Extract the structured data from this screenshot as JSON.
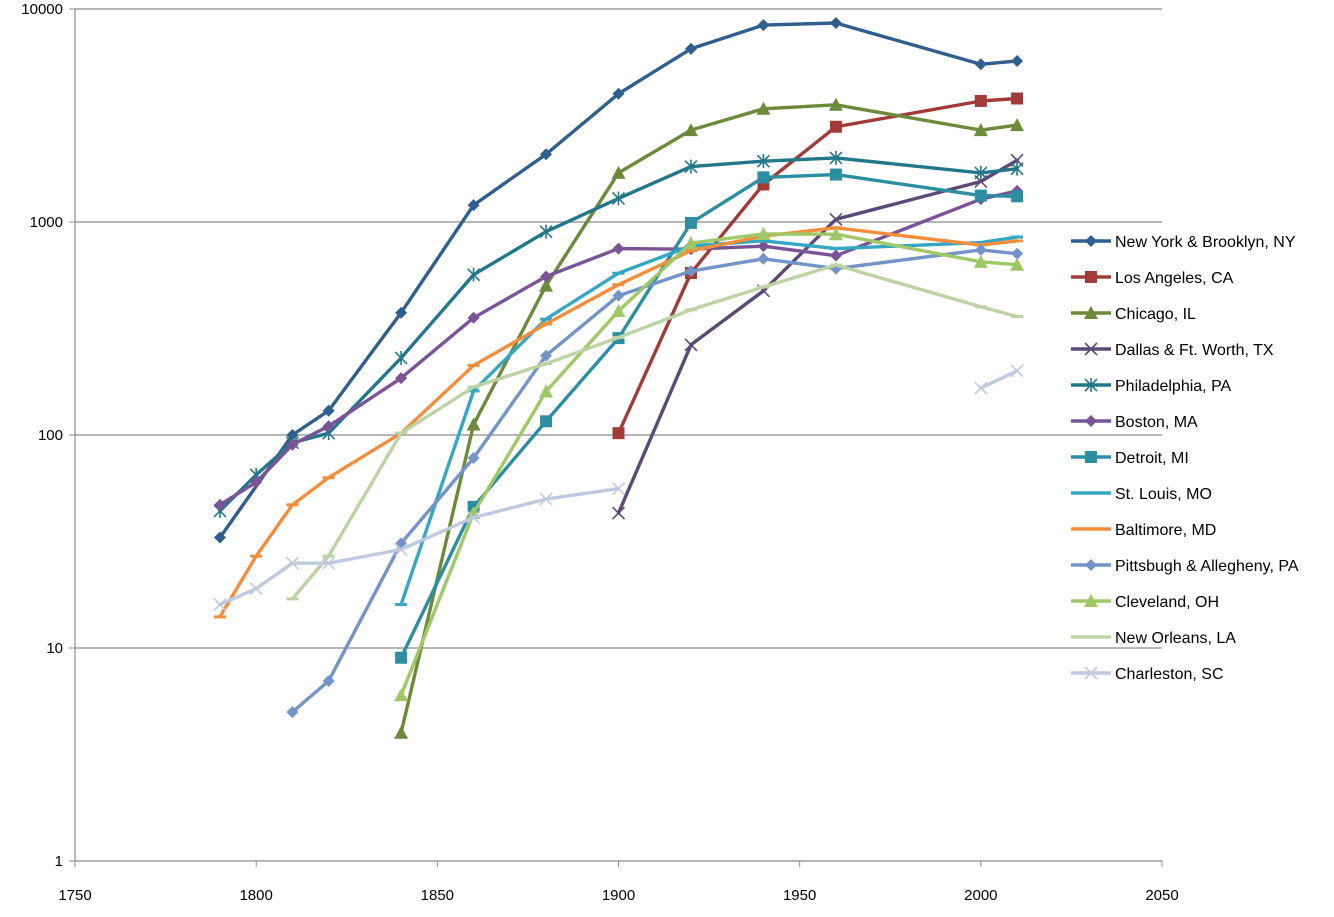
{
  "chart_data": {
    "type": "line",
    "title": "",
    "xlabel": "",
    "ylabel": "",
    "x_scale": "linear",
    "y_scale": "log10",
    "xlim": [
      1750,
      2050
    ],
    "ylim": [
      1,
      10000
    ],
    "x_ticks": [
      1750,
      1800,
      1850,
      1900,
      1950,
      2000,
      2050
    ],
    "x_tick_labels": [
      "1750",
      "1800",
      "1850",
      "1900",
      "1950",
      "2000",
      "2050"
    ],
    "y_ticks": [
      1,
      10,
      100,
      1000,
      10000
    ],
    "y_tick_labels": [
      "1",
      "10",
      "100",
      "1000",
      "10000"
    ],
    "grid": "horizontal major gridlines",
    "legend_position": "right",
    "series": [
      {
        "name": "New York & Brooklyn, NY",
        "color": "#2f5f8f",
        "marker": "diamond",
        "points": [
          [
            1790,
            33
          ],
          [
            1810,
            100
          ],
          [
            1820,
            130
          ],
          [
            1840,
            375
          ],
          [
            1860,
            1200
          ],
          [
            1880,
            2080
          ],
          [
            1900,
            4000
          ],
          [
            1920,
            6500
          ],
          [
            1940,
            8400
          ],
          [
            1960,
            8600
          ],
          [
            2000,
            5500
          ],
          [
            2010,
            5700
          ]
        ]
      },
      {
        "name": "Los Angeles, CA",
        "color": "#a23b38",
        "marker": "square",
        "points": [
          [
            1900,
            102
          ],
          [
            1920,
            576
          ],
          [
            1940,
            1500
          ],
          [
            1960,
            2800
          ],
          [
            2000,
            3700
          ],
          [
            2010,
            3800
          ]
        ]
      },
      {
        "name": "Chicago, IL",
        "color": "#6b8a3a",
        "marker": "triangle",
        "points": [
          [
            1840,
            4
          ],
          [
            1860,
            112
          ],
          [
            1880,
            503
          ],
          [
            1900,
            1700
          ],
          [
            1920,
            2700
          ],
          [
            1940,
            3400
          ],
          [
            1960,
            3550
          ],
          [
            2000,
            2700
          ],
          [
            2010,
            2850
          ]
        ]
      },
      {
        "name": "Dallas & Ft. Worth, TX",
        "color": "#5b4a78",
        "marker": "x",
        "points": [
          [
            1900,
            43
          ],
          [
            1920,
            265
          ],
          [
            1940,
            475
          ],
          [
            1960,
            1030
          ],
          [
            2000,
            1550
          ],
          [
            2010,
            1950
          ]
        ]
      },
      {
        "name": "Philadelphia, PA",
        "color": "#22788a",
        "marker": "star",
        "points": [
          [
            1790,
            44
          ],
          [
            1800,
            65
          ],
          [
            1810,
            92
          ],
          [
            1820,
            102
          ],
          [
            1840,
            230
          ],
          [
            1860,
            566
          ],
          [
            1880,
            900
          ],
          [
            1900,
            1290
          ],
          [
            1920,
            1820
          ],
          [
            1940,
            1930
          ],
          [
            1960,
            2000
          ],
          [
            2000,
            1700
          ],
          [
            2010,
            1780
          ]
        ]
      },
      {
        "name": "Boston, MA",
        "color": "#7a5496",
        "marker": "diamond",
        "points": [
          [
            1790,
            47
          ],
          [
            1800,
            60
          ],
          [
            1810,
            90
          ],
          [
            1820,
            110
          ],
          [
            1840,
            185
          ],
          [
            1860,
            355
          ],
          [
            1880,
            555
          ],
          [
            1900,
            750
          ],
          [
            1920,
            745
          ],
          [
            1940,
            770
          ],
          [
            1960,
            695
          ],
          [
            2000,
            1280
          ],
          [
            2010,
            1400
          ]
        ]
      },
      {
        "name": "Detroit, MI",
        "color": "#2b8ea2",
        "marker": "square",
        "points": [
          [
            1840,
            9
          ],
          [
            1860,
            46
          ],
          [
            1880,
            116
          ],
          [
            1900,
            285
          ],
          [
            1920,
            990
          ],
          [
            1940,
            1620
          ],
          [
            1960,
            1670
          ],
          [
            2000,
            1330
          ],
          [
            2010,
            1320
          ]
        ]
      },
      {
        "name": "St. Louis, MO",
        "color": "#35a7c4",
        "marker": "dash",
        "points": [
          [
            1840,
            16
          ],
          [
            1860,
            161
          ],
          [
            1880,
            350
          ],
          [
            1900,
            575
          ],
          [
            1920,
            772
          ],
          [
            1940,
            816
          ],
          [
            1960,
            750
          ],
          [
            2000,
            800
          ],
          [
            2010,
            850
          ]
        ]
      },
      {
        "name": "Baltimore, MD",
        "color": "#f28e3c",
        "marker": "dash",
        "points": [
          [
            1790,
            14
          ],
          [
            1800,
            27
          ],
          [
            1810,
            47
          ],
          [
            1820,
            63
          ],
          [
            1840,
            102
          ],
          [
            1860,
            212
          ],
          [
            1880,
            332
          ],
          [
            1900,
            508
          ],
          [
            1920,
            733
          ],
          [
            1940,
            859
          ],
          [
            1960,
            939
          ],
          [
            2000,
            780
          ],
          [
            2010,
            815
          ]
        ]
      },
      {
        "name": "Pittsbugh & Allegheny, PA",
        "color": "#7394c8",
        "marker": "diamond",
        "points": [
          [
            1810,
            5
          ],
          [
            1820,
            7
          ],
          [
            1840,
            31
          ],
          [
            1860,
            78
          ],
          [
            1880,
            236
          ],
          [
            1900,
            451
          ],
          [
            1920,
            588
          ],
          [
            1940,
            672
          ],
          [
            1960,
            604
          ],
          [
            2000,
            740
          ],
          [
            2010,
            710
          ]
        ]
      },
      {
        "name": "Cleveland, OH",
        "color": "#9fc866",
        "marker": "triangle",
        "points": [
          [
            1840,
            6
          ],
          [
            1860,
            43
          ],
          [
            1880,
            160
          ],
          [
            1900,
            382
          ],
          [
            1920,
            796
          ],
          [
            1940,
            878
          ],
          [
            1960,
            876
          ],
          [
            2000,
            650
          ],
          [
            2010,
            630
          ]
        ]
      },
      {
        "name": "New Orleans, LA",
        "color": "#bcd3a4",
        "marker": "dash",
        "points": [
          [
            1810,
            17
          ],
          [
            1820,
            27
          ],
          [
            1840,
            102
          ],
          [
            1860,
            168
          ],
          [
            1880,
            216
          ],
          [
            1900,
            287
          ],
          [
            1920,
            387
          ],
          [
            1940,
            495
          ],
          [
            1960,
            628
          ],
          [
            2000,
            400
          ],
          [
            2010,
            360
          ]
        ]
      },
      {
        "name": "Charleston, SC",
        "color": "#bfcadf",
        "marker": "x",
        "points": [
          [
            1790,
            16
          ],
          [
            1800,
            19
          ],
          [
            1810,
            25
          ],
          [
            1820,
            25
          ],
          [
            1840,
            29
          ],
          [
            1860,
            41
          ],
          [
            1880,
            50
          ],
          [
            1900,
            56
          ],
          null,
          [
            2000,
            166
          ],
          [
            2010,
            200
          ]
        ]
      }
    ]
  }
}
